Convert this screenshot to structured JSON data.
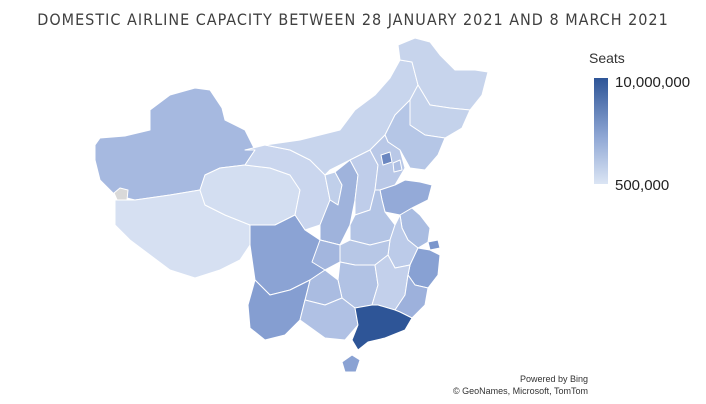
{
  "title": "DOMESTIC AIRLINE CAPACITY BETWEEN 28 JANUARY 2021 AND 8 MARCH 2021",
  "legend": {
    "title": "Seats",
    "max_label": "10,000,000",
    "min_label": "500,000",
    "color_high": "#2e5597",
    "color_low": "#dbe5f4"
  },
  "attribution": {
    "line1": "Powered by Bing",
    "line2": "© GeoNames, Microsoft, TomTom"
  },
  "map_data": {
    "region": "China",
    "metric": "Seats",
    "regions": [
      {
        "id": "heilongjiang",
        "color": "#c7d4ec"
      },
      {
        "id": "jilin",
        "color": "#c4d2eb"
      },
      {
        "id": "liaoning",
        "color": "#b5c6e6"
      },
      {
        "id": "inner-mongolia",
        "color": "#c8d5ed"
      },
      {
        "id": "xinjiang",
        "color": "#a6b9e0"
      },
      {
        "id": "tibet",
        "color": "#d6e0f2"
      },
      {
        "id": "qinghai",
        "color": "#d3def1"
      },
      {
        "id": "gansu",
        "color": "#cad6ee"
      },
      {
        "id": "ningxia",
        "color": "#c0cfea"
      },
      {
        "id": "beijing",
        "color": "#6b87c1"
      },
      {
        "id": "tianjin",
        "color": "#aebfe3"
      },
      {
        "id": "hebei",
        "color": "#b9c8e7"
      },
      {
        "id": "shanxi",
        "color": "#bfcdea"
      },
      {
        "id": "shaanxi",
        "color": "#9fb3dc"
      },
      {
        "id": "shandong",
        "color": "#94aad8"
      },
      {
        "id": "henan",
        "color": "#b3c4e5"
      },
      {
        "id": "jiangsu",
        "color": "#a9bce1"
      },
      {
        "id": "shanghai",
        "color": "#7b96cc"
      },
      {
        "id": "anhui",
        "color": "#bccbe9"
      },
      {
        "id": "hubei",
        "color": "#b7c7e6"
      },
      {
        "id": "zhejiang",
        "color": "#88a1d3"
      },
      {
        "id": "sichuan",
        "color": "#8ba3d4"
      },
      {
        "id": "chongqing",
        "color": "#a3b6de"
      },
      {
        "id": "hunan",
        "color": "#b1c2e4"
      },
      {
        "id": "jiangxi",
        "color": "#c3d0eb"
      },
      {
        "id": "fujian",
        "color": "#9db1dc"
      },
      {
        "id": "guizhou",
        "color": "#aabce1"
      },
      {
        "id": "yunnan",
        "color": "#859ed1"
      },
      {
        "id": "guangxi",
        "color": "#b0c1e4"
      },
      {
        "id": "guangdong",
        "color": "#2e5597"
      },
      {
        "id": "hainan",
        "color": "#8aa2d3"
      },
      {
        "id": "taiwan-area",
        "color": "#d9d9d9"
      }
    ]
  }
}
